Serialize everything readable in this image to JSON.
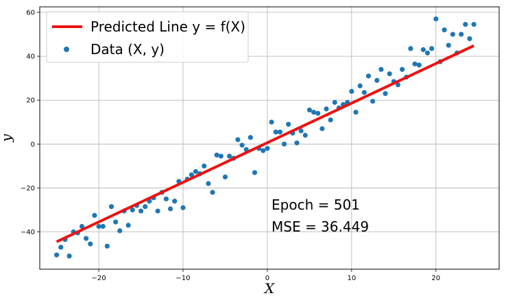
{
  "chart_data": {
    "type": "scatter",
    "title": "",
    "xlabel": "X",
    "ylabel": "y",
    "xlim": [
      -27,
      27.5
    ],
    "ylim": [
      -57,
      62.5
    ],
    "grid": true,
    "xticks": [
      -20,
      -10,
      0,
      10,
      20
    ],
    "yticks": [
      -40,
      -20,
      0,
      20,
      40,
      60
    ],
    "legend": {
      "placement": "top-left",
      "entries": [
        {
          "label": "Predicted Line y = f(X)",
          "kind": "line",
          "color": "#ee1111"
        },
        {
          "label": "Data (X, y)",
          "kind": "marker",
          "color": "#1f77b4"
        }
      ]
    },
    "annotations": {
      "epoch": "Epoch = 501",
      "mse": "MSE = 36.449"
    },
    "line": {
      "name": "Predicted Line y = f(X)",
      "x": [
        -25,
        24.5
      ],
      "y": [
        -44.5,
        44.8
      ],
      "color": "#ee1111"
    },
    "scatter": {
      "name": "Data (X, y)",
      "color": "#1f77b4",
      "points": [
        [
          -25,
          -50.5
        ],
        [
          -24.5,
          -47
        ],
        [
          -24,
          -43.5
        ],
        [
          -23.5,
          -51
        ],
        [
          -23,
          -40
        ],
        [
          -22.5,
          -40.5
        ],
        [
          -22,
          -37.5
        ],
        [
          -21.5,
          -43
        ],
        [
          -21,
          -45.5
        ],
        [
          -20.5,
          -32.5
        ],
        [
          -20,
          -37.5
        ],
        [
          -19.5,
          -37.5
        ],
        [
          -19,
          -46.5
        ],
        [
          -18.5,
          -28.5
        ],
        [
          -18,
          -35.5
        ],
        [
          -17.5,
          -39.5
        ],
        [
          -17,
          -30.5
        ],
        [
          -16.5,
          -37
        ],
        [
          -16,
          -30
        ],
        [
          -15.5,
          -28
        ],
        [
          -15,
          -30.5
        ],
        [
          -14.5,
          -28.5
        ],
        [
          -14,
          -26
        ],
        [
          -13.5,
          -24.5
        ],
        [
          -13,
          -30.5
        ],
        [
          -12.5,
          -22
        ],
        [
          -12,
          -25
        ],
        [
          -11.5,
          -29.5
        ],
        [
          -11,
          -26
        ],
        [
          -10.5,
          -17
        ],
        [
          -10,
          -29
        ],
        [
          -9.5,
          -16
        ],
        [
          -9,
          -14
        ],
        [
          -8.5,
          -12.5
        ],
        [
          -8,
          -13.5
        ],
        [
          -7.5,
          -10
        ],
        [
          -7,
          -18
        ],
        [
          -6.5,
          -22
        ],
        [
          -6,
          -5
        ],
        [
          -5.5,
          -5.5
        ],
        [
          -5,
          -15
        ],
        [
          -4.5,
          -5.5
        ],
        [
          -4,
          -6.5
        ],
        [
          -3.5,
          2
        ],
        [
          -3,
          -0.5
        ],
        [
          -2.5,
          -2.5
        ],
        [
          -2,
          3
        ],
        [
          -1.5,
          -13
        ],
        [
          -1,
          -2
        ],
        [
          -0.5,
          -3
        ],
        [
          0,
          -2
        ],
        [
          0.5,
          10
        ],
        [
          1,
          5.5
        ],
        [
          1.5,
          5.5
        ],
        [
          2,
          0
        ],
        [
          2.5,
          9
        ],
        [
          3,
          5
        ],
        [
          3.5,
          0.5
        ],
        [
          4,
          6
        ],
        [
          4.5,
          4
        ],
        [
          5,
          15.5
        ],
        [
          5.5,
          14.5
        ],
        [
          6,
          14
        ],
        [
          6.5,
          7
        ],
        [
          7,
          16
        ],
        [
          7.5,
          11
        ],
        [
          8,
          19
        ],
        [
          8.5,
          16.5
        ],
        [
          9,
          18
        ],
        [
          9.5,
          19
        ],
        [
          10,
          24
        ],
        [
          10.5,
          14.5
        ],
        [
          11,
          26.5
        ],
        [
          11.5,
          23.5
        ],
        [
          12,
          31
        ],
        [
          12.5,
          19.5
        ],
        [
          13,
          29
        ],
        [
          13.5,
          34
        ],
        [
          14,
          23
        ],
        [
          14.5,
          32
        ],
        [
          15,
          28.5
        ],
        [
          15.5,
          27
        ],
        [
          16,
          34
        ],
        [
          16.5,
          30.5
        ],
        [
          17,
          43.5
        ],
        [
          17.5,
          36.5
        ],
        [
          18,
          36
        ],
        [
          18.5,
          43
        ],
        [
          19,
          41.5
        ],
        [
          19.5,
          43.5
        ],
        [
          20,
          57
        ],
        [
          20.5,
          37.5
        ],
        [
          21,
          52
        ],
        [
          21.5,
          45
        ],
        [
          22,
          50
        ],
        [
          22.5,
          41.5
        ],
        [
          23,
          50
        ],
        [
          23.5,
          54.5
        ],
        [
          24,
          48
        ],
        [
          24.5,
          54.5
        ]
      ]
    }
  }
}
